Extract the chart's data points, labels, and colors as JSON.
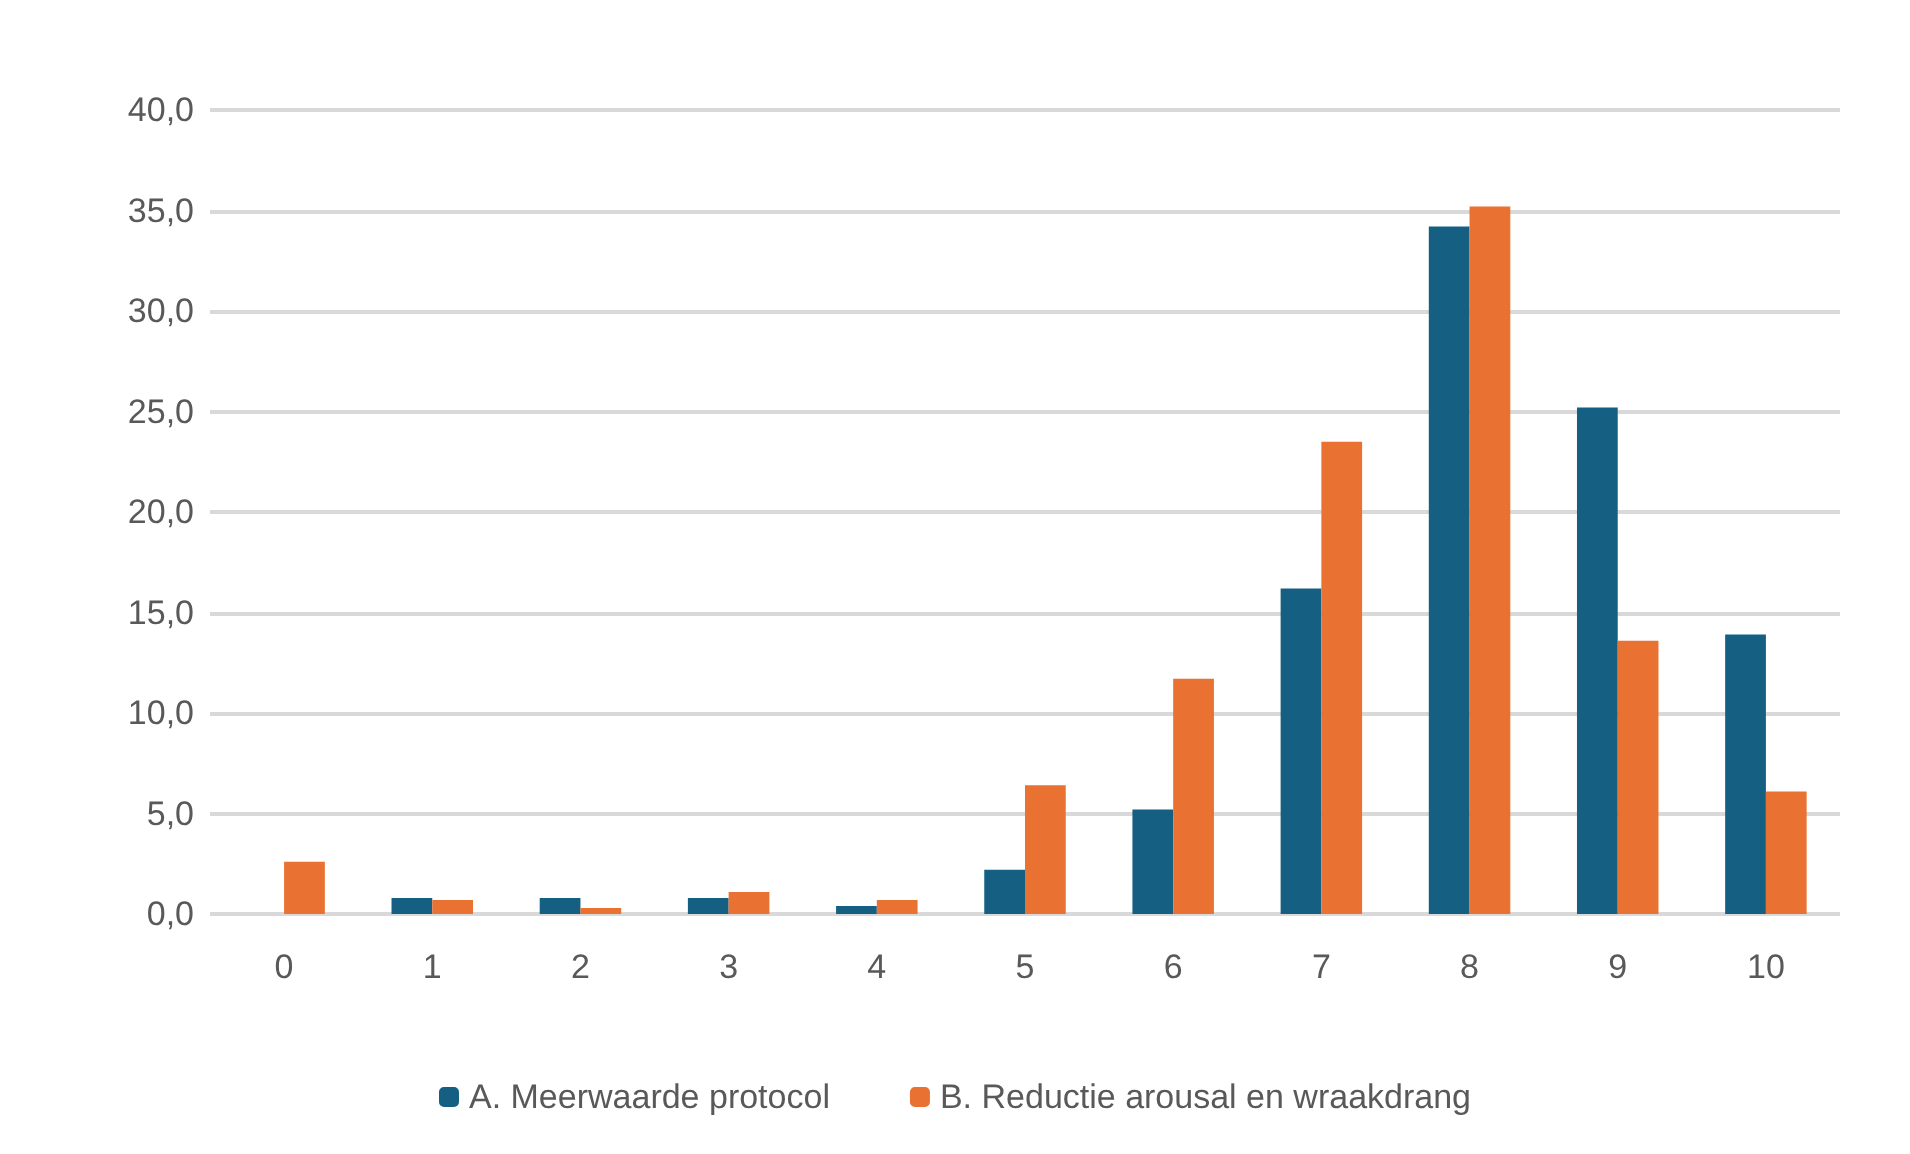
{
  "chart_data": {
    "type": "bar",
    "categories": [
      "0",
      "1",
      "2",
      "3",
      "4",
      "5",
      "6",
      "7",
      "8",
      "9",
      "10"
    ],
    "series": [
      {
        "name": "A. Meerwaarde protocol",
        "color": "#156082",
        "values": [
          0.0,
          0.8,
          0.8,
          0.8,
          0.4,
          2.2,
          5.2,
          16.2,
          34.2,
          25.2,
          13.9
        ]
      },
      {
        "name": "B. Reductie arousal en wraakdrang",
        "color": "#e97132",
        "values": [
          2.6,
          0.7,
          0.3,
          1.1,
          0.7,
          6.4,
          11.7,
          23.5,
          35.2,
          13.6,
          6.1
        ]
      }
    ],
    "ylim": [
      0,
      40
    ],
    "yticks": [
      {
        "value": 0,
        "label": "0,0"
      },
      {
        "value": 5,
        "label": "5,0"
      },
      {
        "value": 10,
        "label": "10,0"
      },
      {
        "value": 15,
        "label": "15,0"
      },
      {
        "value": 20,
        "label": "20,0"
      },
      {
        "value": 25,
        "label": "25,0"
      },
      {
        "value": 30,
        "label": "30,0"
      },
      {
        "value": 35,
        "label": "35,0"
      },
      {
        "value": 40,
        "label": "40,0"
      }
    ],
    "grid": "y",
    "legend": "bottom"
  }
}
